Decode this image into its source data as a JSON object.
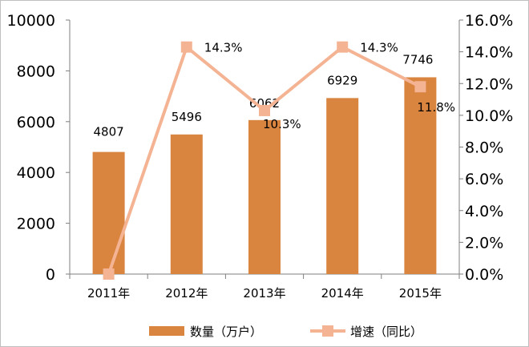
{
  "chart_data": {
    "type": "bar",
    "categories": [
      "2011年",
      "2012年",
      "2013年",
      "2014年",
      "2015年"
    ],
    "series": [
      {
        "name": "数量（万户）",
        "type": "bar",
        "axis": "left",
        "values": [
          4807,
          5496,
          6062,
          6929,
          7746
        ],
        "labels": [
          "4807",
          "5496",
          "6062",
          "6929",
          "7746"
        ]
      },
      {
        "name": "增速（同比）",
        "type": "line",
        "axis": "right",
        "values": [
          0.0,
          14.3,
          10.3,
          14.3,
          11.8
        ],
        "labels": [
          "",
          "14.3%",
          "10.3%",
          "14.3%",
          "11.8%"
        ]
      }
    ],
    "ylim": [
      0,
      10000
    ],
    "y_ticks": [
      "0",
      "2000",
      "4000",
      "6000",
      "8000",
      "10000"
    ],
    "y2lim": [
      0,
      16
    ],
    "y2_ticks": [
      "0.0%",
      "2.0%",
      "4.0%",
      "6.0%",
      "8.0%",
      "10.0%",
      "12.0%",
      "14.0%",
      "16.0%"
    ],
    "grid": false,
    "legend_position": "bottom",
    "colors": {
      "bar": "#d9843f",
      "line": "#f4b393",
      "marker": "#f4b393",
      "axis": "#7f7f7f"
    }
  }
}
